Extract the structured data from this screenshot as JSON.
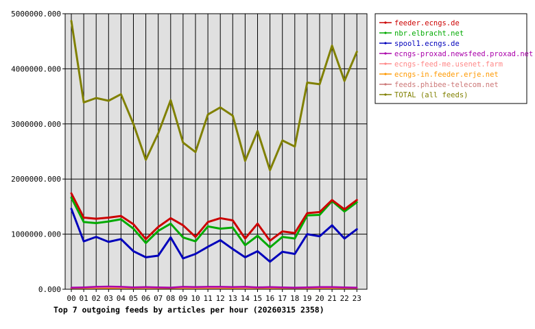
{
  "chart_data": {
    "type": "line",
    "title": "Top 7 outgoing feeds by articles per hour (20260315 2358)",
    "xlabel": "",
    "ylabel": "",
    "categories": [
      "00",
      "01",
      "02",
      "03",
      "04",
      "05",
      "06",
      "07",
      "08",
      "09",
      "10",
      "11",
      "12",
      "13",
      "14",
      "15",
      "16",
      "17",
      "18",
      "19",
      "20",
      "21",
      "22",
      "23"
    ],
    "ylim": [
      0,
      5000000
    ],
    "yticks": [
      "0.000",
      "1000000.000",
      "2000000.000",
      "3000000.000",
      "4000000.000",
      "5000000.000"
    ],
    "grid": true,
    "legend_position": "right",
    "series": [
      {
        "name": "feeder.ecngs.de",
        "color": "#cc0000",
        "values": [
          1740000,
          1300000,
          1280000,
          1300000,
          1330000,
          1180000,
          910000,
          1130000,
          1290000,
          1160000,
          950000,
          1220000,
          1290000,
          1250000,
          920000,
          1190000,
          880000,
          1050000,
          1020000,
          1380000,
          1400000,
          1620000,
          1450000,
          1620000
        ]
      },
      {
        "name": "nbr.elbracht.net",
        "color": "#00aa00",
        "values": [
          1660000,
          1220000,
          1200000,
          1230000,
          1270000,
          1100000,
          840000,
          1060000,
          1190000,
          940000,
          870000,
          1140000,
          1100000,
          1120000,
          800000,
          970000,
          760000,
          950000,
          920000,
          1340000,
          1350000,
          1600000,
          1410000,
          1580000
        ]
      },
      {
        "name": "spool1.ecngs.de",
        "color": "#0000bb",
        "values": [
          1460000,
          870000,
          950000,
          860000,
          910000,
          690000,
          580000,
          610000,
          940000,
          560000,
          640000,
          770000,
          890000,
          730000,
          580000,
          690000,
          500000,
          680000,
          640000,
          1000000,
          960000,
          1160000,
          920000,
          1090000
        ]
      },
      {
        "name": "ecngs-proxad.newsfeed.proxad.net",
        "color": "#aa00aa",
        "values": [
          30000,
          35000,
          45000,
          50000,
          45000,
          35000,
          40000,
          35000,
          30000,
          45000,
          40000,
          45000,
          45000,
          40000,
          45000,
          35000,
          40000,
          35000,
          30000,
          35000,
          40000,
          40000,
          35000,
          30000
        ]
      },
      {
        "name": "ecngs-feed-me.usenet.farm",
        "color": "#ff8888",
        "values": [
          25000,
          30000,
          35000,
          40000,
          35000,
          30000,
          30000,
          30000,
          30000,
          35000,
          30000,
          35000,
          35000,
          35000,
          30000,
          30000,
          35000,
          30000,
          25000,
          30000,
          35000,
          35000,
          30000,
          25000
        ]
      },
      {
        "name": "ecngs-in.feeder.erje.net",
        "color": "#ff9900",
        "values": [
          20000,
          20000,
          25000,
          25000,
          25000,
          20000,
          20000,
          20000,
          20000,
          25000,
          20000,
          25000,
          25000,
          20000,
          20000,
          20000,
          25000,
          20000,
          20000,
          20000,
          25000,
          25000,
          20000,
          20000
        ]
      },
      {
        "name": "feeds.phibee-telecom.net",
        "color": "#cc7777",
        "values": [
          15000,
          15000,
          20000,
          20000,
          20000,
          15000,
          15000,
          15000,
          15000,
          20000,
          15000,
          20000,
          20000,
          15000,
          15000,
          15000,
          20000,
          15000,
          15000,
          15000,
          20000,
          20000,
          15000,
          15000
        ]
      },
      {
        "name": "TOTAL (all feeds)",
        "color": "#808000",
        "values": [
          4870000,
          3390000,
          3470000,
          3420000,
          3540000,
          3000000,
          2350000,
          2830000,
          3430000,
          2660000,
          2490000,
          3170000,
          3300000,
          3150000,
          2330000,
          2870000,
          2160000,
          2700000,
          2590000,
          3750000,
          3720000,
          4420000,
          3780000,
          4310000
        ]
      }
    ]
  }
}
